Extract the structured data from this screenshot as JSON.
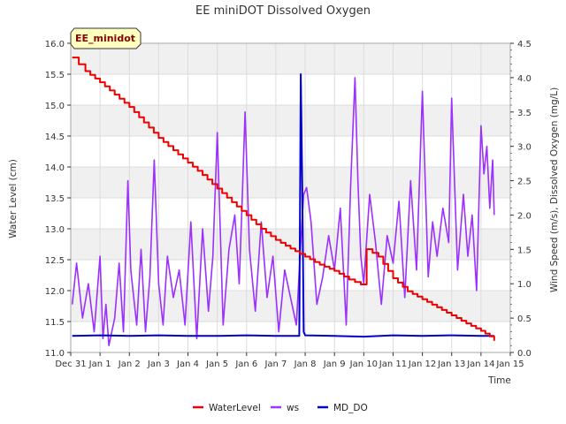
{
  "chart_data": {
    "type": "line",
    "title": "EE miniDOT Dissolved Oxygen",
    "badge": "EE_minidot",
    "xlabel": "Time",
    "ylabel_left": "Water Level (cm)",
    "ylabel_right": "Wind Speed (m/s), Dissolved Oxygen (mg/L)",
    "xlim": [
      0,
      15
    ],
    "ylim_left": [
      11.0,
      16.0
    ],
    "ylim_right": [
      0.0,
      4.5
    ],
    "x_ticks": [
      {
        "v": 0,
        "label": "Dec 31"
      },
      {
        "v": 1,
        "label": "Jan 1"
      },
      {
        "v": 2,
        "label": "Jan 2"
      },
      {
        "v": 3,
        "label": "Jan 3"
      },
      {
        "v": 4,
        "label": "Jan 4"
      },
      {
        "v": 5,
        "label": "Jan 5"
      },
      {
        "v": 6,
        "label": "Jan 6"
      },
      {
        "v": 7,
        "label": "Jan 7"
      },
      {
        "v": 8,
        "label": "Jan 8"
      },
      {
        "v": 9,
        "label": "Jan 9"
      },
      {
        "v": 10,
        "label": "Jan 10"
      },
      {
        "v": 11,
        "label": "Jan 11"
      },
      {
        "v": 12,
        "label": "Jan 12"
      },
      {
        "v": 13,
        "label": "Jan 13"
      },
      {
        "v": 14,
        "label": "Jan 14"
      },
      {
        "v": 15,
        "label": "Jan 15"
      }
    ],
    "y_left_ticks": [
      "11.0",
      "11.5",
      "12.0",
      "12.5",
      "13.0",
      "13.5",
      "14.0",
      "14.5",
      "15.0",
      "15.5",
      "16.0"
    ],
    "y_right_ticks": [
      "0.0",
      "0.5",
      "1.0",
      "1.5",
      "2.0",
      "2.5",
      "3.0",
      "3.5",
      "4.0",
      "4.5"
    ],
    "grid": true,
    "legend_position": "bottom-center",
    "series": [
      {
        "name": "WaterLevel",
        "axis": "left",
        "color": "#ee0000",
        "x": [
          0.05,
          0.5,
          1.0,
          1.5,
          2.0,
          2.5,
          3.0,
          3.5,
          4.0,
          4.5,
          5.0,
          5.5,
          6.0,
          6.5,
          7.0,
          7.5,
          8.0,
          8.5,
          9.0,
          9.5,
          9.9,
          10.1,
          10.5,
          11.0,
          11.5,
          12.0,
          12.5,
          13.0,
          13.5,
          14.0,
          14.3,
          14.45
        ],
        "y": [
          15.77,
          15.55,
          15.37,
          15.17,
          14.97,
          14.72,
          14.47,
          14.27,
          14.07,
          13.87,
          13.65,
          13.43,
          13.22,
          13.0,
          12.82,
          12.68,
          12.55,
          12.42,
          12.32,
          12.18,
          12.1,
          12.67,
          12.55,
          12.2,
          11.99,
          11.86,
          11.73,
          11.6,
          11.47,
          11.35,
          11.26,
          11.19
        ]
      },
      {
        "name": "ws",
        "axis": "right",
        "color": "#9b30ff",
        "x": [
          0.05,
          0.2,
          0.4,
          0.6,
          0.8,
          1.0,
          1.1,
          1.2,
          1.3,
          1.5,
          1.65,
          1.8,
          1.95,
          2.05,
          2.15,
          2.25,
          2.4,
          2.55,
          2.7,
          2.85,
          3.0,
          3.15,
          3.3,
          3.5,
          3.7,
          3.9,
          4.1,
          4.3,
          4.5,
          4.7,
          4.85,
          5.0,
          5.2,
          5.4,
          5.6,
          5.75,
          5.85,
          5.95,
          6.1,
          6.3,
          6.5,
          6.7,
          6.9,
          7.1,
          7.3,
          7.5,
          7.7,
          7.85,
          7.95,
          8.05,
          8.2,
          8.4,
          8.6,
          8.8,
          9.0,
          9.2,
          9.4,
          9.55,
          9.7,
          9.8,
          9.9,
          10.0,
          10.2,
          10.4,
          10.6,
          10.8,
          11.0,
          11.2,
          11.4,
          11.6,
          11.8,
          12.0,
          12.2,
          12.35,
          12.5,
          12.7,
          12.9,
          13.0,
          13.2,
          13.4,
          13.55,
          13.7,
          13.85,
          14.0,
          14.1,
          14.2,
          14.3,
          14.4,
          14.45
        ],
        "y": [
          0.7,
          1.3,
          0.5,
          1.0,
          0.3,
          1.4,
          0.2,
          0.7,
          0.1,
          0.5,
          1.3,
          0.3,
          2.5,
          1.2,
          0.8,
          0.4,
          1.5,
          0.3,
          1.1,
          2.8,
          1.0,
          0.4,
          1.4,
          0.8,
          1.2,
          0.4,
          1.9,
          0.2,
          1.8,
          0.6,
          1.4,
          3.2,
          0.4,
          1.5,
          2.0,
          1.0,
          2.2,
          3.5,
          1.5,
          0.6,
          1.9,
          0.8,
          1.4,
          0.3,
          1.2,
          0.8,
          0.4,
          1.6,
          2.3,
          2.4,
          1.9,
          0.7,
          1.1,
          1.7,
          1.2,
          2.1,
          0.4,
          2.4,
          4.0,
          2.5,
          1.4,
          1.0,
          2.3,
          1.6,
          0.7,
          1.7,
          1.3,
          2.2,
          0.8,
          2.5,
          1.2,
          3.8,
          1.1,
          1.9,
          1.4,
          2.1,
          1.6,
          3.7,
          1.2,
          2.3,
          1.4,
          2.0,
          0.9,
          3.3,
          2.6,
          3.0,
          2.1,
          2.8,
          2.0
        ],
        "ws_extra": {
          "ws_note": ""
        }
      },
      {
        "name": "MD_DO",
        "axis": "right",
        "color": "#0000cc",
        "x": [
          0.05,
          1.0,
          2.0,
          3.0,
          4.0,
          5.0,
          6.0,
          7.0,
          7.8,
          7.85,
          7.9,
          7.95,
          8.0,
          9.0,
          10.0,
          11.0,
          12.0,
          13.0,
          14.0,
          14.45
        ],
        "y": [
          0.24,
          0.25,
          0.24,
          0.25,
          0.24,
          0.24,
          0.25,
          0.24,
          0.24,
          4.05,
          2.4,
          0.3,
          0.25,
          0.24,
          0.23,
          0.25,
          0.24,
          0.25,
          0.24,
          0.24
        ]
      }
    ]
  },
  "legend": {
    "items": [
      "WaterLevel",
      "ws",
      "MD_DO"
    ]
  },
  "colors": {
    "plot_band": "#f0f0f0",
    "badge_fill": "#ffffc0",
    "badge_text": "#8b0000"
  }
}
